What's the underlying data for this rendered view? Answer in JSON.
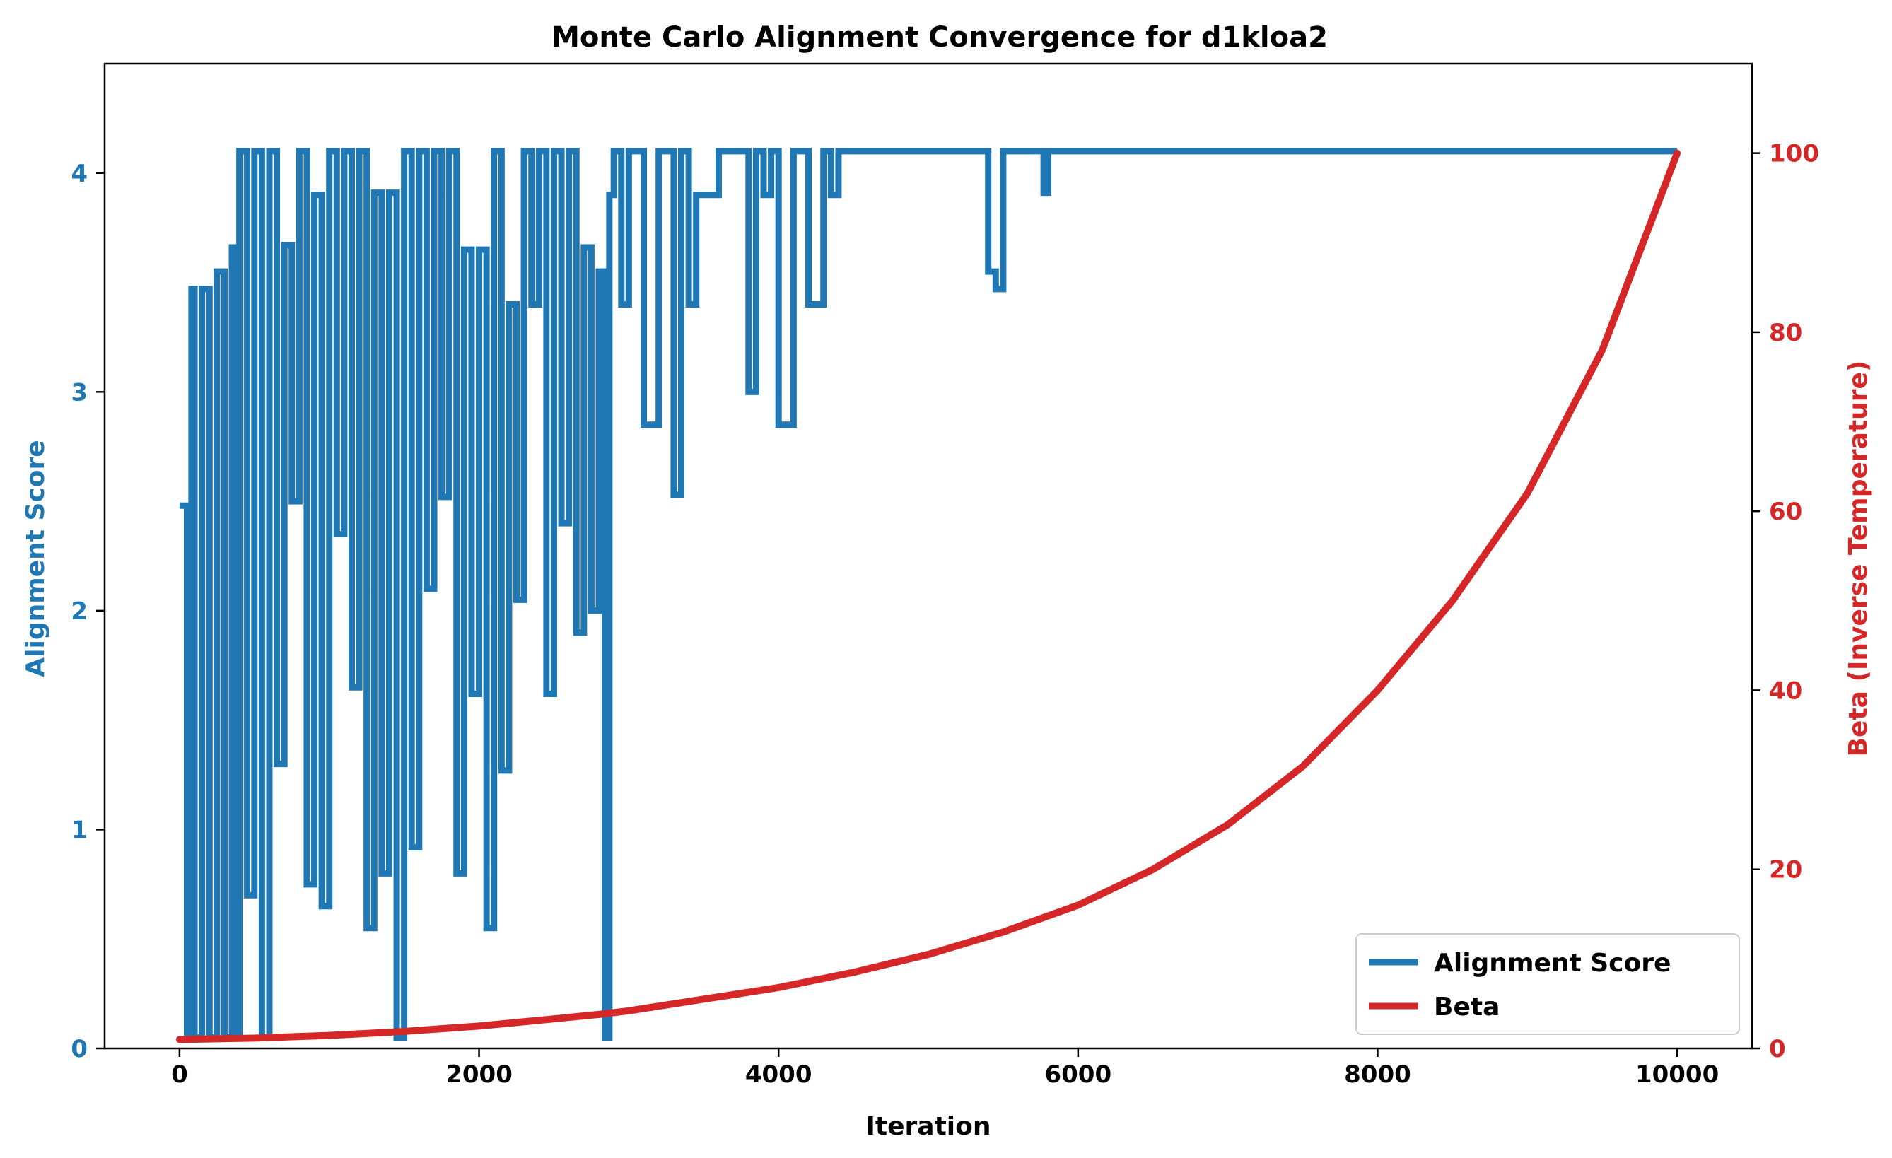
{
  "chart_data": {
    "type": "line",
    "title": "Monte Carlo Alignment Convergence for d1kloa2",
    "xlabel": "Iteration",
    "ylabel": "Alignment Score",
    "y2label": "Beta (Inverse Temperature)",
    "xlim": [
      -500,
      10500
    ],
    "ylim": [
      0,
      4.5
    ],
    "y2lim": [
      0,
      110
    ],
    "xticks": [
      0,
      2000,
      4000,
      6000,
      8000,
      10000
    ],
    "xtick_labels": [
      "0",
      "2000",
      "4000",
      "6000",
      "8000",
      "10000"
    ],
    "yticks": [
      0,
      1,
      2,
      3,
      4
    ],
    "ytick_labels": [
      "0",
      "1",
      "2",
      "3",
      "4"
    ],
    "y2ticks": [
      0,
      20,
      40,
      60,
      80,
      100
    ],
    "y2tick_labels": [
      "0",
      "20",
      "40",
      "60",
      "80",
      "100"
    ],
    "legend_position": "lower-right",
    "grid": false,
    "colors": {
      "score": "#1f77b4",
      "beta": "#d62728",
      "axes": "#000000"
    },
    "series": [
      {
        "name": "Alignment Score",
        "axis": "left",
        "x": [
          0,
          50,
          80,
          100,
          150,
          200,
          250,
          300,
          350,
          380,
          400,
          450,
          500,
          550,
          600,
          650,
          700,
          750,
          800,
          850,
          900,
          950,
          1000,
          1050,
          1100,
          1150,
          1200,
          1250,
          1300,
          1350,
          1400,
          1450,
          1500,
          1550,
          1600,
          1650,
          1700,
          1750,
          1800,
          1850,
          1900,
          1950,
          2000,
          2050,
          2100,
          2150,
          2200,
          2250,
          2300,
          2350,
          2400,
          2450,
          2500,
          2550,
          2600,
          2650,
          2700,
          2750,
          2800,
          2840,
          2870,
          2900,
          2950,
          3000,
          3100,
          3200,
          3300,
          3350,
          3400,
          3450,
          3500,
          3600,
          3700,
          3800,
          3850,
          3900,
          3950,
          4000,
          4100,
          4200,
          4300,
          4350,
          4400,
          4500,
          5000,
          5400,
          5450,
          5500,
          5700,
          5770,
          5800,
          6000,
          7000,
          8000,
          9000,
          10000
        ],
        "values": [
          2.48,
          0.05,
          3.47,
          0.05,
          3.47,
          0.05,
          3.55,
          0.05,
          3.66,
          0.05,
          4.1,
          0.7,
          4.1,
          0.05,
          4.1,
          1.3,
          3.67,
          2.5,
          4.1,
          0.75,
          3.9,
          0.65,
          4.1,
          2.35,
          4.1,
          1.65,
          4.1,
          0.55,
          3.91,
          0.8,
          3.91,
          0.05,
          4.1,
          0.92,
          4.1,
          2.1,
          4.1,
          2.52,
          4.1,
          0.8,
          3.65,
          1.62,
          3.65,
          0.55,
          4.1,
          1.27,
          3.4,
          2.05,
          4.1,
          3.4,
          4.1,
          1.62,
          4.1,
          2.4,
          4.1,
          1.9,
          3.66,
          2.0,
          3.55,
          0.05,
          3.9,
          4.1,
          3.4,
          4.1,
          2.85,
          4.1,
          2.53,
          4.1,
          3.4,
          3.9,
          3.9,
          4.1,
          4.1,
          3.0,
          4.1,
          3.9,
          4.1,
          2.85,
          4.1,
          3.4,
          4.1,
          3.9,
          4.1,
          4.1,
          4.1,
          3.55,
          3.47,
          4.1,
          4.1,
          3.91,
          4.1,
          4.1,
          4.1,
          4.1,
          4.1,
          4.1
        ]
      },
      {
        "name": "Beta",
        "axis": "right",
        "x": [
          0,
          500,
          1000,
          1500,
          2000,
          2500,
          2800,
          3000,
          3500,
          4000,
          4500,
          5000,
          5500,
          6000,
          6500,
          7000,
          7500,
          8000,
          8500,
          9000,
          9500,
          10000
        ],
        "values": [
          1.0,
          1.15,
          1.45,
          1.9,
          2.5,
          3.3,
          3.8,
          4.2,
          5.5,
          6.8,
          8.5,
          10.5,
          13.0,
          16.0,
          20.0,
          25.0,
          31.5,
          40.0,
          50.0,
          62.0,
          78.0,
          100.0
        ]
      }
    ]
  }
}
